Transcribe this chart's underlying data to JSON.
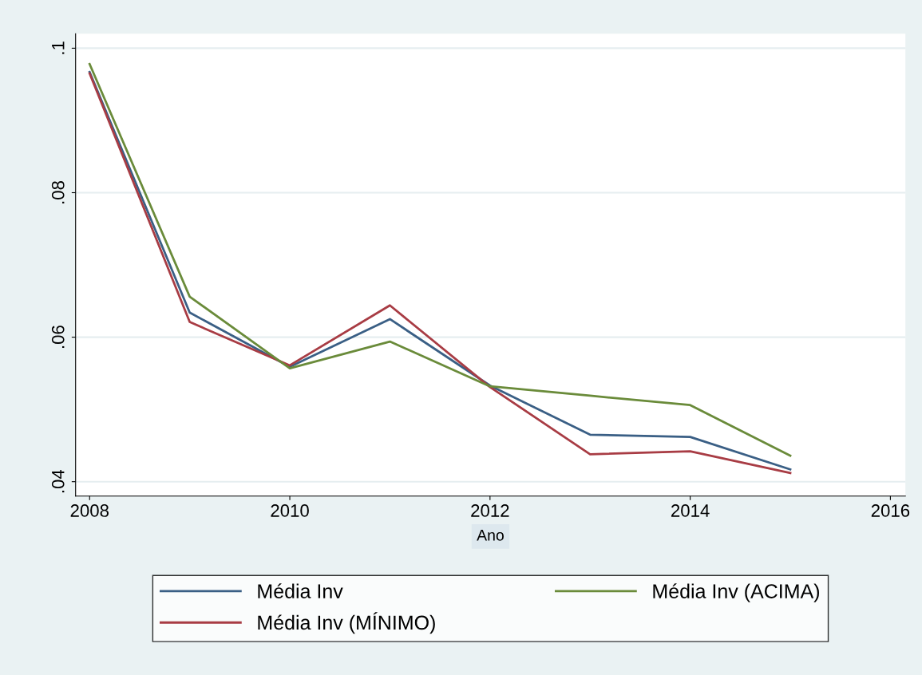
{
  "chart_data": {
    "type": "line",
    "xlabel": "Ano",
    "x": [
      2008,
      2009,
      2010,
      2011,
      2012,
      2013,
      2014,
      2015
    ],
    "series": [
      {
        "name": "Média Inv",
        "color": "#3a5f85",
        "values": [
          0.0967,
          0.0634,
          0.0559,
          0.0625,
          0.0533,
          0.0465,
          0.0462,
          0.0417
        ]
      },
      {
        "name": "Média Inv (MÍNIMO)",
        "color": "#a83c44",
        "values": [
          0.0965,
          0.0621,
          0.0561,
          0.0644,
          0.0531,
          0.0438,
          0.0442,
          0.0412
        ]
      },
      {
        "name": "Média Inv (ACIMA)",
        "color": "#6a8b3a",
        "values": [
          0.0978,
          0.0656,
          0.0557,
          0.0594,
          0.0532,
          0.0519,
          0.0506,
          0.0436
        ]
      }
    ],
    "xlim": [
      2007.86,
      2016.15
    ],
    "xticks": [
      2008,
      2010,
      2012,
      2014,
      2016
    ],
    "ylim": [
      0.038,
      0.102
    ],
    "yticks": [
      {
        "value": 0.04,
        "label": ".04"
      },
      {
        "value": 0.06,
        "label": ".06"
      },
      {
        "value": 0.08,
        "label": ".08"
      },
      {
        "value": 0.1,
        "label": ".1"
      }
    ],
    "grid": "y",
    "legend": "bottom",
    "marker": "none",
    "line_style": "solid"
  }
}
